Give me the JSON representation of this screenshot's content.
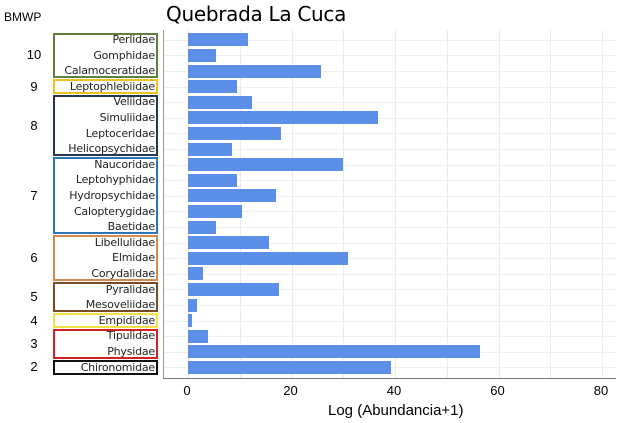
{
  "chart_data": {
    "type": "bar",
    "orientation": "horizontal",
    "title": "Quebrada La Cuca",
    "xlabel": "Log (Abundancia+1)",
    "ylabel": "BMWP",
    "xlim": [
      0,
      80
    ],
    "xticks": [
      "0",
      "20",
      "40",
      "60",
      "80"
    ],
    "grid": true,
    "categories": [
      "Perlidae",
      "Gomphidae",
      "Calamoceratidae",
      "Leptophlebiidae",
      "Veliidae",
      "Simuliidae",
      "Leptoceridae",
      "Helicopsychidae",
      "Naucoridae",
      "Leptohyphidae",
      "Hydropsychidae",
      "Calopterygidae",
      "Baetidae",
      "Libellulidae",
      "Elmidae",
      "Corydalidae",
      "Pyralidae",
      "Mesoveliidae",
      "Empididae",
      "Tipulidae",
      "Physidae",
      "Chironomidae"
    ],
    "values": [
      11.6,
      5.4,
      25.7,
      9.5,
      12.4,
      36.7,
      18.0,
      8.5,
      30.0,
      9.5,
      17.0,
      10.4,
      5.4,
      15.7,
      30.9,
      2.9,
      17.6,
      1.7,
      0.8,
      3.9,
      56.4,
      39.2
    ],
    "bar_color": "#5b8fe8",
    "groups": [
      {
        "score": "10",
        "count": 3,
        "color": "#5f7f3c"
      },
      {
        "score": "9",
        "count": 1,
        "color": "#f0c020"
      },
      {
        "score": "8",
        "count": 4,
        "color": "#263650"
      },
      {
        "score": "7",
        "count": 5,
        "color": "#2e75b6"
      },
      {
        "score": "6",
        "count": 3,
        "color": "#d08a50"
      },
      {
        "score": "5",
        "count": 2,
        "color": "#7a4a22"
      },
      {
        "score": "4",
        "count": 1,
        "color": "#f5e04a"
      },
      {
        "score": "3",
        "count": 2,
        "color": "#d42020"
      },
      {
        "score": "2",
        "count": 1,
        "color": "#111111"
      }
    ]
  }
}
